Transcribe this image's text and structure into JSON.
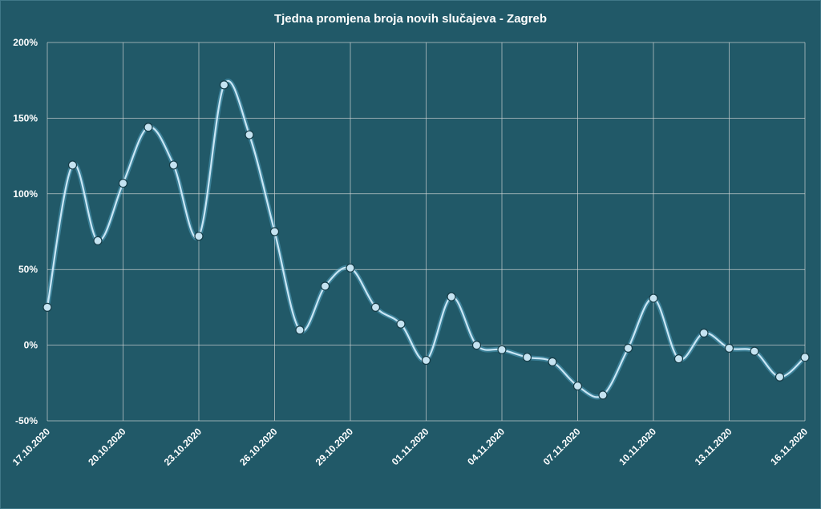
{
  "chart_data": {
    "type": "line",
    "title": "Tjedna promjena broja novih slučajeva - Zagreb",
    "xlabel": "",
    "ylabel": "",
    "ylim": [
      -50,
      200
    ],
    "y_ticks": [
      -50,
      0,
      50,
      100,
      150,
      200
    ],
    "y_tick_labels": [
      "-50%",
      "0%",
      "50%",
      "100%",
      "150%",
      "200%"
    ],
    "x_tick_labels": [
      "17.10.2020",
      "20.10.2020",
      "23.10.2020",
      "26.10.2020",
      "29.10.2020",
      "01.11.2020",
      "04.11.2020",
      "07.11.2020",
      "10.11.2020",
      "13.11.2020",
      "16.11.2020"
    ],
    "x_tick_every": 3,
    "grid": true,
    "legend": "none",
    "colors": {
      "background": "#215968",
      "line": "#c9e6f5",
      "marker": "#c5e3f1",
      "grid": "#d9d9d9"
    },
    "series": [
      {
        "values": [
          25,
          119,
          69,
          107,
          144,
          119,
          72,
          172,
          139,
          75,
          10,
          39,
          51,
          25,
          14,
          -10,
          32,
          0,
          -3,
          -8,
          -11,
          -27,
          -33,
          -2,
          31,
          -9,
          8,
          -2,
          -4,
          -21,
          -8
        ]
      }
    ]
  }
}
